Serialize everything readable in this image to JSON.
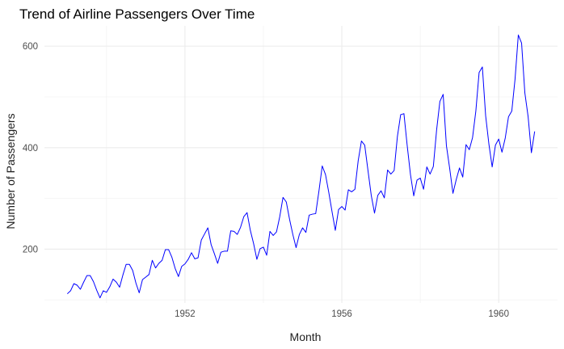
{
  "chart_data": {
    "type": "line",
    "title": "Trend of Airline Passengers Over Time",
    "xlabel": "Month",
    "ylabel": "Number of Passengers",
    "x_start": "1949-01",
    "x_end": "1960-12",
    "x_step": "month",
    "xlim": [
      "1948-06",
      "1961-07"
    ],
    "ylim": [
      94,
      640
    ],
    "xticks": [
      {
        "label": "1952",
        "value": "1952-01"
      },
      {
        "label": "1956",
        "value": "1956-01"
      },
      {
        "label": "1960",
        "value": "1960-01"
      }
    ],
    "yticks": [
      {
        "label": "200",
        "value": 200
      },
      {
        "label": "400",
        "value": 400
      },
      {
        "label": "600",
        "value": 600
      }
    ],
    "grid": true,
    "legend": "none",
    "series": [
      {
        "color": "#0000FF",
        "values": [
          112,
          118,
          132,
          129,
          121,
          135,
          148,
          148,
          136,
          119,
          104,
          118,
          115,
          126,
          141,
          135,
          125,
          149,
          170,
          170,
          158,
          133,
          114,
          140,
          145,
          150,
          178,
          163,
          172,
          178,
          199,
          199,
          184,
          162,
          146,
          166,
          171,
          180,
          193,
          181,
          183,
          218,
          230,
          242,
          209,
          191,
          172,
          194,
          196,
          196,
          236,
          235,
          229,
          243,
          264,
          272,
          237,
          211,
          180,
          201,
          204,
          188,
          235,
          227,
          234,
          264,
          302,
          293,
          259,
          229,
          203,
          229,
          242,
          233,
          267,
          269,
          270,
          315,
          364,
          347,
          312,
          274,
          237,
          278,
          284,
          277,
          317,
          313,
          318,
          374,
          413,
          405,
          355,
          306,
          271,
          306,
          315,
          301,
          356,
          348,
          355,
          422,
          465,
          467,
          404,
          347,
          305,
          336,
          340,
          318,
          362,
          348,
          363,
          435,
          491,
          505,
          404,
          359,
          310,
          337,
          360,
          342,
          406,
          396,
          420,
          472,
          548,
          559,
          463,
          407,
          362,
          405,
          417,
          391,
          419,
          461,
          472,
          535,
          622,
          606,
          508,
          461,
          390,
          432
        ]
      }
    ]
  }
}
